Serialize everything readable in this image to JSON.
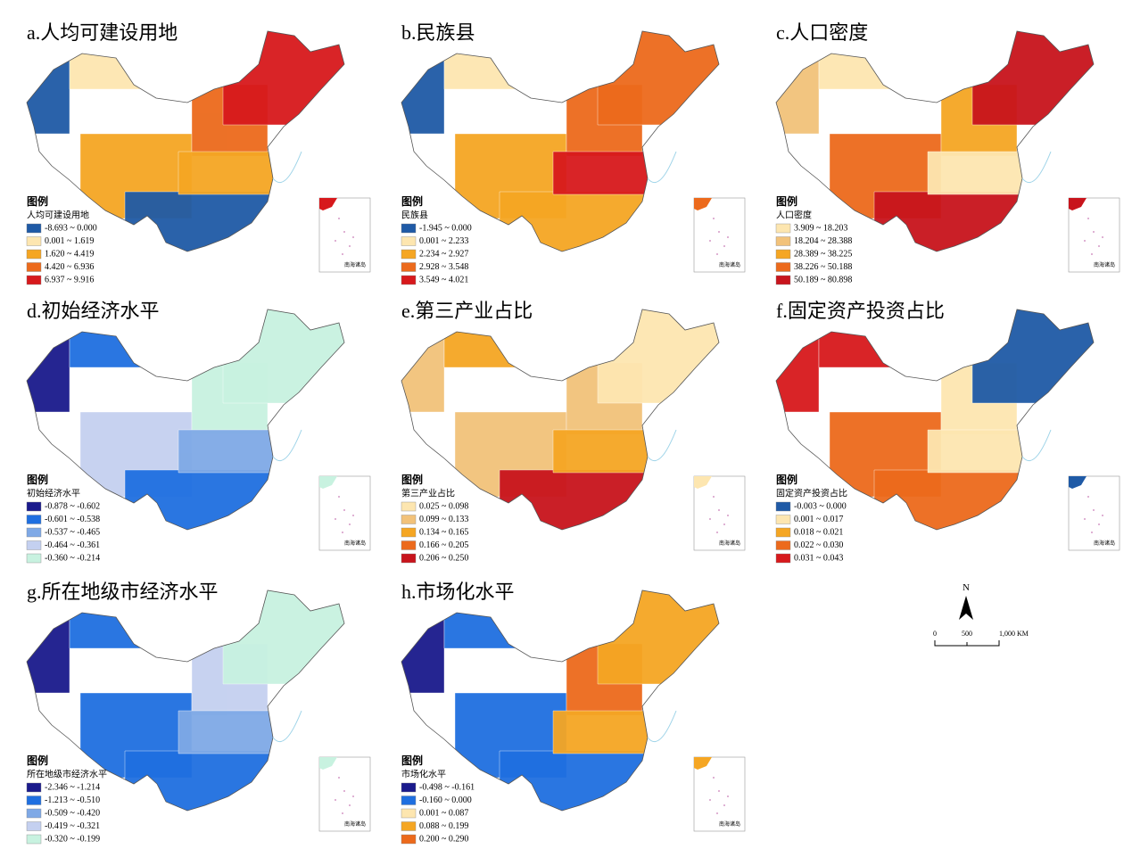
{
  "panels": [
    {
      "title": "a.人均可建设用地",
      "legend_title": "图例",
      "legend_subtitle": "人均可建设用地",
      "inset_label": "南海诸岛",
      "legend": [
        {
          "label": "-8.693 ~ 0.000",
          "color": "#1f5aa6"
        },
        {
          "label": "0.001 ~ 1.619",
          "color": "#fde6b0"
        },
        {
          "label": "1.620 ~ 4.419",
          "color": "#f5a623"
        },
        {
          "label": "4.420 ~ 6.936",
          "color": "#ec6a1c"
        },
        {
          "label": "6.937 ~ 9.916",
          "color": "#d7191c"
        }
      ]
    },
    {
      "title": "b.民族县",
      "legend_title": "图例",
      "legend_subtitle": "民族县",
      "inset_label": "南海诸岛",
      "legend": [
        {
          "label": "-1.945 ~ 0.000",
          "color": "#1f5aa6"
        },
        {
          "label": "0.001 ~ 2.233",
          "color": "#fde6b0"
        },
        {
          "label": "2.234 ~ 2.927",
          "color": "#f5a623"
        },
        {
          "label": "2.928 ~ 3.548",
          "color": "#ec6a1c"
        },
        {
          "label": "3.549 ~ 4.021",
          "color": "#d7191c"
        }
      ]
    },
    {
      "title": "c.人口密度",
      "legend_title": "图例",
      "legend_subtitle": "人口密度",
      "inset_label": "南海诸岛",
      "legend": [
        {
          "label": "3.909 ~ 18.203",
          "color": "#fde6b0"
        },
        {
          "label": "18.204 ~ 28.388",
          "color": "#f2c27a"
        },
        {
          "label": "28.389 ~ 38.225",
          "color": "#f5a623"
        },
        {
          "label": "38.226 ~ 50.188",
          "color": "#ec6a1c"
        },
        {
          "label": "50.189 ~ 80.898",
          "color": "#c8141c"
        }
      ]
    },
    {
      "title": "d.初始经济水平",
      "legend_title": "图例",
      "legend_subtitle": "初始经济水平",
      "inset_label": "南海诸岛",
      "legend": [
        {
          "label": "-0.878 ~ -0.602",
          "color": "#1a1a8c"
        },
        {
          "label": "-0.601 ~ -0.538",
          "color": "#1f6fe0"
        },
        {
          "label": "-0.537 ~ -0.465",
          "color": "#7fa9e6"
        },
        {
          "label": "-0.464 ~ -0.361",
          "color": "#c4d0f0"
        },
        {
          "label": "-0.360 ~ -0.214",
          "color": "#c8f2e0"
        }
      ]
    },
    {
      "title": "e.第三产业占比",
      "legend_title": "图例",
      "legend_subtitle": "第三产业占比",
      "inset_label": "南海诸岛",
      "legend": [
        {
          "label": "0.025 ~ 0.098",
          "color": "#fde6b0"
        },
        {
          "label": "0.099 ~ 0.133",
          "color": "#f2c27a"
        },
        {
          "label": "0.134 ~ 0.165",
          "color": "#f5a623"
        },
        {
          "label": "0.166 ~ 0.205",
          "color": "#ec6a1c"
        },
        {
          "label": "0.206 ~ 0.250",
          "color": "#c8141c"
        }
      ]
    },
    {
      "title": "f.固定资产投资占比",
      "legend_title": "图例",
      "legend_subtitle": "固定资产投资占比",
      "inset_label": "南海诸岛",
      "legend": [
        {
          "label": "-0.003 ~ 0.000",
          "color": "#1f5aa6"
        },
        {
          "label": "0.001 ~ 0.017",
          "color": "#fde6b0"
        },
        {
          "label": "0.018 ~ 0.021",
          "color": "#f5a623"
        },
        {
          "label": "0.022 ~ 0.030",
          "color": "#ec6a1c"
        },
        {
          "label": "0.031 ~ 0.043",
          "color": "#d7191c"
        }
      ]
    },
    {
      "title": "g.所在地级市经济水平",
      "legend_title": "图例",
      "legend_subtitle": "所在地级市经济水平",
      "inset_label": "南海诸岛",
      "legend": [
        {
          "label": "-2.346 ~ -1.214",
          "color": "#1a1a8c"
        },
        {
          "label": "-1.213 ~ -0.510",
          "color": "#1f6fe0"
        },
        {
          "label": "-0.509 ~ -0.420",
          "color": "#7fa9e6"
        },
        {
          "label": "-0.419 ~ -0.321",
          "color": "#c4d0f0"
        },
        {
          "label": "-0.320 ~ -0.199",
          "color": "#c8f2e0"
        }
      ]
    },
    {
      "title": "h.市场化水平",
      "legend_title": "图例",
      "legend_subtitle": "市场化水平",
      "inset_label": "南海诸岛",
      "legend": [
        {
          "label": "-0.498 ~ -0.161",
          "color": "#1a1a8c"
        },
        {
          "label": "-0.160 ~ 0.000",
          "color": "#1f6fe0"
        },
        {
          "label": "0.001 ~ 0.087",
          "color": "#fde6b0"
        },
        {
          "label": "0.088 ~ 0.199",
          "color": "#f5a623"
        },
        {
          "label": "0.200 ~ 0.290",
          "color": "#ec6a1c"
        }
      ]
    }
  ],
  "scale_bar": {
    "north": "N",
    "ticks": [
      "0",
      "500",
      "1,000 KM"
    ]
  }
}
